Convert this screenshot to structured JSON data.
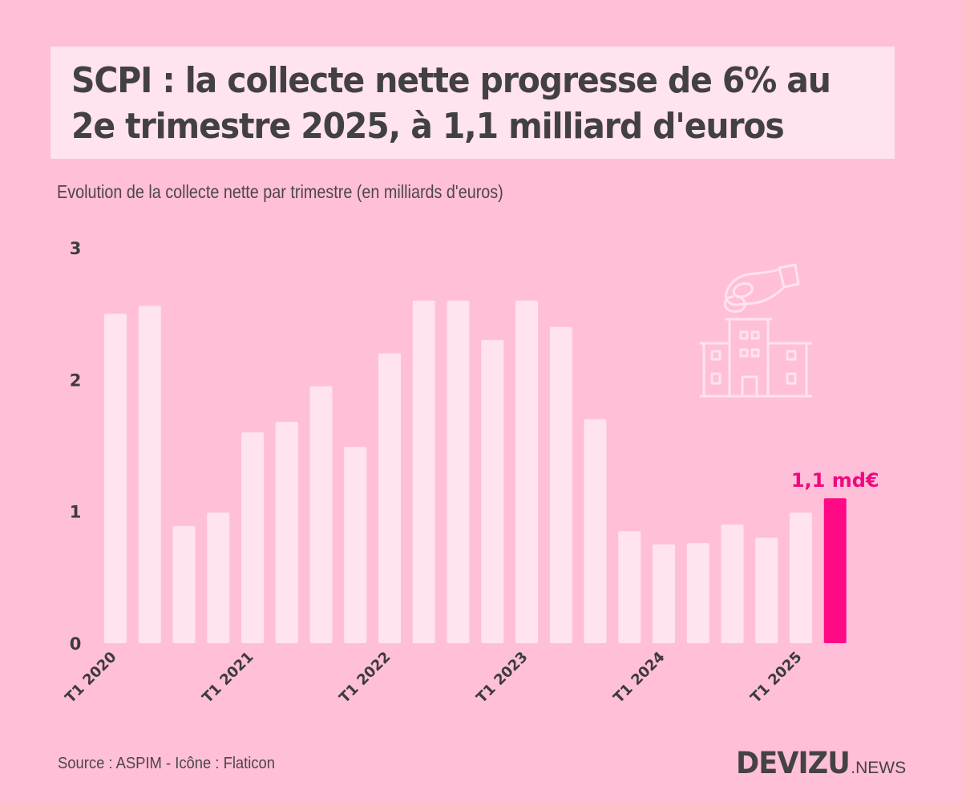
{
  "header": {
    "title_lines": [
      "SCPI : la collecte nette progresse de 6% au",
      "2e trimestre 2025, à 1,1 milliard d'euros"
    ],
    "subtitle": "Evolution de la collecte nette par trimestre (en milliards d'euros)"
  },
  "footer": {
    "source": "Source : ASPIM - Icône : Flaticon",
    "brand_main": "DEVIZU",
    "brand_sub": ".NEWS"
  },
  "icon": {
    "name": "hand-coin-building-icon"
  },
  "colors": {
    "background": "#ffbfd8",
    "bar": "#ffe3ef",
    "highlight": "#ff0a86",
    "text": "#424042",
    "annotation": "#f0087f"
  },
  "chart_data": {
    "type": "bar",
    "title": "SCPI : la collecte nette progresse de 6% au 2e trimestre 2025, à 1,1 milliard d'euros",
    "subtitle": "Evolution de la collecte nette par trimestre (en milliards d'euros)",
    "xlabel": "",
    "ylabel": "",
    "ylim": [
      0,
      3
    ],
    "yticks": [
      0,
      1,
      2,
      3
    ],
    "grid": false,
    "categories": [
      "T1 2020",
      "T2 2020",
      "T3 2020",
      "T4 2020",
      "T1 2021",
      "T2 2021",
      "T3 2021",
      "T4 2021",
      "T1 2022",
      "T2 2022",
      "T3 2022",
      "T4 2022",
      "T1 2023",
      "T2 2023",
      "T3 2023",
      "T4 2023",
      "T1 2024",
      "T2 2024",
      "T3 2024",
      "T4 2024",
      "T1 2025",
      "T2 2025"
    ],
    "visible_xtick_labels": [
      "T1 2020",
      "T1 2021",
      "T1 2022",
      "T1 2023",
      "T1 2024",
      "T1 2025"
    ],
    "values": [
      2.5,
      2.56,
      0.89,
      0.99,
      1.6,
      1.68,
      1.95,
      1.49,
      2.2,
      2.6,
      2.6,
      2.3,
      2.6,
      2.4,
      1.7,
      0.85,
      0.75,
      0.76,
      0.9,
      0.8,
      0.99,
      1.1
    ],
    "highlight_index": 21,
    "annotation": {
      "category": "T2 2025",
      "text": "1,1 md€"
    }
  }
}
